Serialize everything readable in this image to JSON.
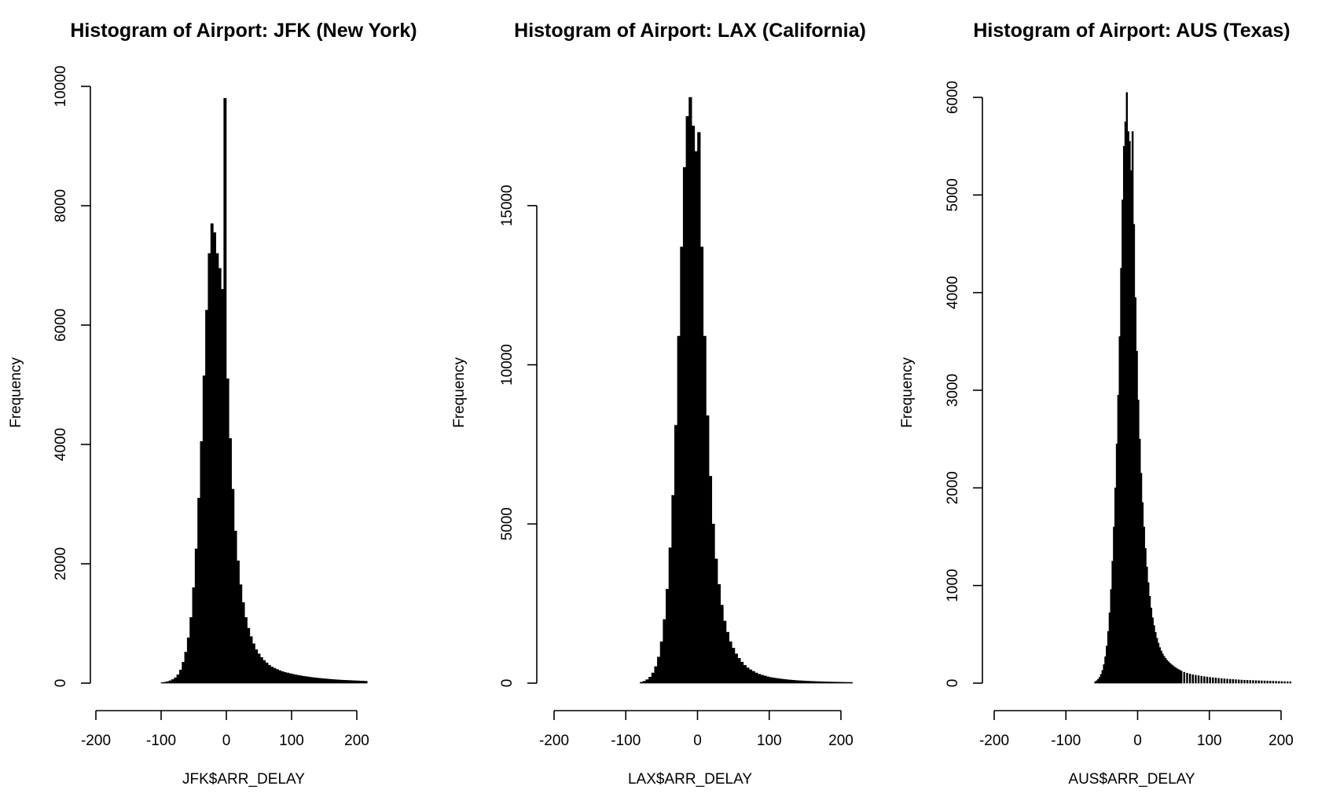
{
  "chart_data": [
    {
      "type": "bar",
      "title": "Histogram of Airport: JFK (New York)",
      "xlabel": "JFK$ARR_DELAY",
      "ylabel": "Frequency",
      "xlim": [
        -200,
        200
      ],
      "ylim": [
        0,
        10000
      ],
      "xticks": [
        -200,
        -100,
        0,
        100,
        200
      ],
      "yticks": [
        0,
        2000,
        4000,
        6000,
        8000,
        10000
      ],
      "bin_width": 4,
      "x": [
        -100,
        -96,
        -92,
        -88,
        -84,
        -80,
        -76,
        -72,
        -68,
        -64,
        -60,
        -56,
        -52,
        -48,
        -44,
        -40,
        -36,
        -32,
        -28,
        -24,
        -20,
        -16,
        -12,
        -8,
        -4,
        0,
        4,
        8,
        12,
        16,
        20,
        24,
        28,
        32,
        36,
        40,
        44,
        48,
        52,
        56,
        60,
        64,
        68,
        72,
        76,
        80,
        84,
        88,
        92,
        96,
        100,
        104,
        108,
        112,
        116,
        120,
        124,
        128,
        132,
        136,
        140,
        144,
        148,
        152,
        156,
        160,
        164,
        168,
        172,
        176,
        180,
        184,
        188,
        192,
        196,
        200,
        204,
        208,
        212
      ],
      "values": [
        10,
        15,
        25,
        40,
        60,
        90,
        140,
        220,
        350,
        520,
        760,
        1100,
        1600,
        2250,
        3100,
        4050,
        5150,
        6250,
        7200,
        7700,
        7550,
        7200,
        6950,
        6600,
        9800,
        5100,
        4100,
        3250,
        2550,
        2050,
        1650,
        1350,
        1100,
        920,
        780,
        660,
        560,
        490,
        430,
        380,
        340,
        300,
        270,
        250,
        230,
        210,
        195,
        180,
        170,
        160,
        150,
        140,
        132,
        124,
        116,
        110,
        104,
        98,
        92,
        87,
        82,
        78,
        74,
        70,
        66,
        62,
        59,
        56,
        53,
        50,
        48,
        46,
        44,
        42,
        40,
        38,
        36,
        34,
        32
      ]
    },
    {
      "type": "bar",
      "title": "Histogram of Airport: LAX (California)",
      "xlabel": "LAX$ARR_DELAY",
      "ylabel": "Frequency",
      "xlim": [
        -200,
        200
      ],
      "ylim": [
        0,
        18400
      ],
      "xticks": [
        -200,
        -100,
        0,
        100,
        200
      ],
      "yticks": [
        0,
        5000,
        10000,
        15000
      ],
      "bin_width": 4,
      "x": [
        -80,
        -76,
        -72,
        -68,
        -64,
        -60,
        -56,
        -52,
        -48,
        -44,
        -40,
        -36,
        -32,
        -28,
        -24,
        -20,
        -16,
        -12,
        -8,
        -4,
        0,
        4,
        8,
        12,
        16,
        20,
        24,
        28,
        32,
        36,
        40,
        44,
        48,
        52,
        56,
        60,
        64,
        68,
        72,
        76,
        80,
        84,
        88,
        92,
        96,
        100,
        104,
        108,
        112,
        116,
        120,
        124,
        128,
        132,
        136,
        140,
        144,
        148,
        152,
        156,
        160,
        164,
        168,
        172,
        176,
        180,
        184,
        188,
        192,
        196,
        200,
        204,
        208,
        212
      ],
      "values": [
        30,
        60,
        110,
        190,
        320,
        520,
        820,
        1300,
        2000,
        2950,
        4250,
        5900,
        8100,
        10900,
        13700,
        16200,
        17800,
        18400,
        17500,
        16700,
        17300,
        13700,
        10900,
        8400,
        6500,
        5000,
        3900,
        3100,
        2450,
        1950,
        1600,
        1300,
        1100,
        920,
        780,
        660,
        560,
        480,
        420,
        370,
        320,
        280,
        250,
        225,
        200,
        180,
        165,
        150,
        138,
        126,
        116,
        106,
        98,
        90,
        83,
        77,
        72,
        67,
        62,
        58,
        54,
        50,
        47,
        44,
        41,
        38,
        36,
        34,
        32,
        30,
        28,
        26,
        25,
        24
      ]
    },
    {
      "type": "bar",
      "title": "Histogram of Airport: AUS (Texas)",
      "xlabel": "AUS$ARR_DELAY",
      "ylabel": "Frequency",
      "xlim": [
        -200,
        200
      ],
      "ylim": [
        0,
        6000
      ],
      "xticks": [
        -200,
        -100,
        0,
        100,
        200
      ],
      "yticks": [
        0,
        1000,
        2000,
        3000,
        4000,
        5000,
        6000
      ],
      "bin_width": 2,
      "x": [
        -60,
        -58,
        -56,
        -54,
        -52,
        -50,
        -48,
        -46,
        -44,
        -42,
        -40,
        -38,
        -36,
        -34,
        -32,
        -30,
        -28,
        -26,
        -24,
        -22,
        -20,
        -18,
        -16,
        -14,
        -12,
        -10,
        -8,
        -6,
        -4,
        -2,
        0,
        2,
        4,
        6,
        8,
        10,
        12,
        14,
        16,
        18,
        20,
        22,
        24,
        26,
        28,
        30,
        32,
        34,
        36,
        38,
        40,
        42,
        44,
        46,
        48,
        50,
        52,
        54,
        56,
        58,
        60,
        64,
        68,
        72,
        76,
        80,
        84,
        88,
        92,
        96,
        100,
        104,
        108,
        112,
        116,
        120,
        124,
        128,
        132,
        136,
        140,
        144,
        148,
        152,
        156,
        160,
        164,
        168,
        172,
        176,
        180,
        184,
        188,
        192,
        196,
        200,
        204,
        208,
        212
      ],
      "values": [
        15,
        25,
        40,
        60,
        90,
        130,
        190,
        270,
        380,
        530,
        720,
        960,
        1250,
        1600,
        2000,
        2450,
        2950,
        3550,
        4250,
        4950,
        5500,
        5750,
        6050,
        5650,
        5550,
        5250,
        5650,
        4700,
        3950,
        3400,
        2900,
        2500,
        2150,
        1850,
        1600,
        1380,
        1190,
        1030,
        890,
        770,
        670,
        590,
        520,
        460,
        410,
        365,
        330,
        300,
        275,
        255,
        235,
        220,
        205,
        192,
        180,
        168,
        158,
        148,
        140,
        132,
        124,
        112,
        102,
        94,
        87,
        81,
        76,
        71,
        67,
        63,
        59,
        56,
        53,
        50,
        47,
        44,
        42,
        40,
        38,
        36,
        34,
        32,
        30,
        29,
        28,
        27,
        26,
        25,
        24,
        23,
        22,
        21,
        20,
        19,
        18,
        17,
        16,
        15,
        14
      ]
    }
  ]
}
